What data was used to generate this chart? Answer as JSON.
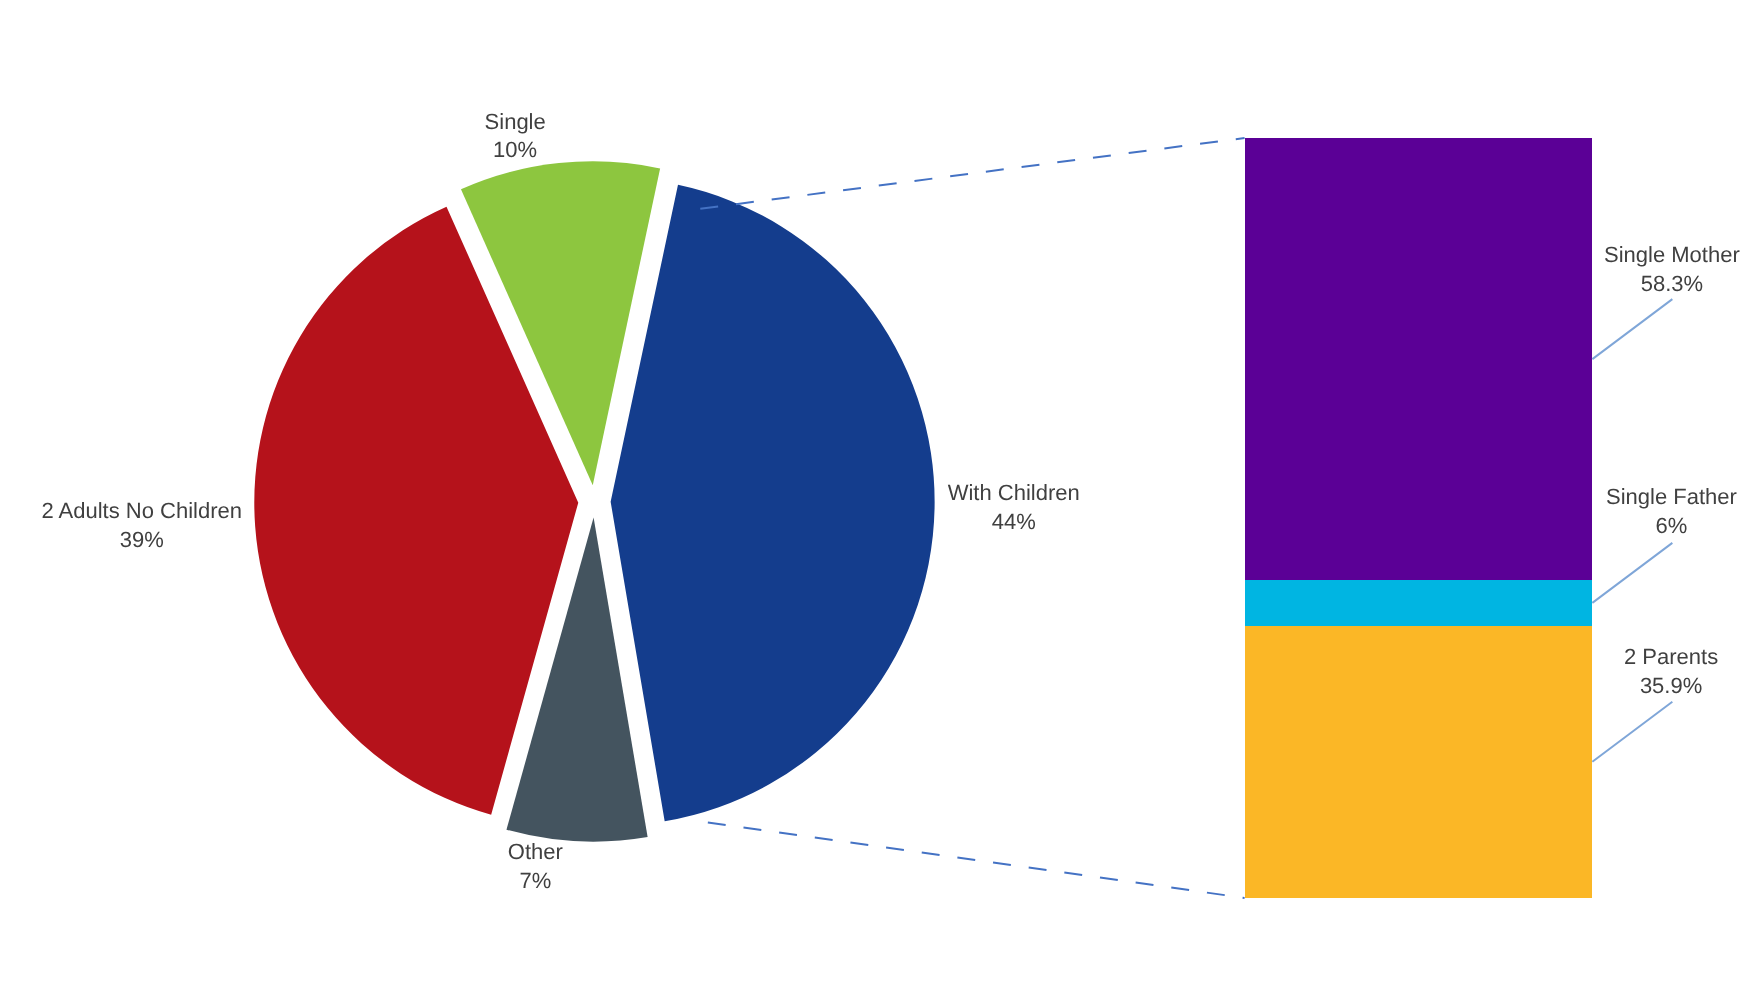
{
  "chart_data": [
    {
      "type": "pie",
      "categories": [
        "Single",
        "With Children",
        "Other",
        "2 Adults No Children"
      ],
      "values": [
        10,
        44,
        7,
        39
      ],
      "colors": [
        "#8dc63f",
        "#143d8d",
        "#44545f",
        "#b5121b"
      ],
      "value_labels": [
        "10%",
        "44%",
        "7%",
        "39%"
      ]
    },
    {
      "type": "bar",
      "stacked": true,
      "categories": [
        null
      ],
      "tick_labels": false,
      "series": [
        {
          "name": "2 Parents",
          "color": "#fbb726",
          "values": [
            35.9
          ],
          "value_labels": [
            "35.9%"
          ]
        },
        {
          "name": "Single Father",
          "color": "#00b5e2",
          "values": [
            6
          ],
          "value_labels": [
            "6%"
          ]
        },
        {
          "name": "Single Mother",
          "color": "#5b0096",
          "values": [
            58.3
          ],
          "value_labels": [
            "58.3%"
          ]
        }
      ]
    }
  ]
}
